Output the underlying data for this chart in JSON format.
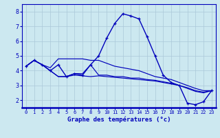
{
  "xlabel": "Graphe des températures (°c)",
  "xlim": [
    -0.5,
    23.5
  ],
  "ylim": [
    1.5,
    8.5
  ],
  "yticks": [
    2,
    3,
    4,
    5,
    6,
    7,
    8
  ],
  "xticks": [
    0,
    1,
    2,
    3,
    4,
    5,
    6,
    7,
    8,
    9,
    10,
    11,
    12,
    13,
    14,
    15,
    16,
    17,
    18,
    19,
    20,
    21,
    22,
    23
  ],
  "background_color": "#cce8f0",
  "grid_color": "#aac8d8",
  "line_color": "#0000bb",
  "curves": [
    {
      "x": [
        0,
        1,
        2,
        3,
        4,
        5,
        6,
        7,
        8,
        9,
        10,
        11,
        12,
        13,
        14,
        15,
        16,
        17,
        18,
        19,
        20,
        21,
        22,
        23
      ],
      "y": [
        4.3,
        4.7,
        4.4,
        4.0,
        4.4,
        3.6,
        3.8,
        3.7,
        4.4,
        5.0,
        6.2,
        7.2,
        7.85,
        7.7,
        7.5,
        6.3,
        5.0,
        3.7,
        3.2,
        3.0,
        1.8,
        1.7,
        1.9,
        2.65
      ],
      "marker": true
    },
    {
      "x": [
        0,
        1,
        2,
        3,
        4,
        5,
        6,
        7,
        8,
        9,
        10,
        11,
        12,
        13,
        14,
        15,
        16,
        17,
        18,
        19,
        20,
        21,
        22,
        23
      ],
      "y": [
        4.3,
        4.7,
        4.4,
        4.2,
        4.8,
        4.8,
        4.8,
        4.8,
        4.7,
        4.7,
        4.5,
        4.3,
        4.2,
        4.1,
        4.0,
        3.8,
        3.6,
        3.5,
        3.4,
        3.2,
        3.0,
        2.8,
        2.65,
        2.65
      ],
      "marker": false
    },
    {
      "x": [
        0,
        1,
        2,
        3,
        4,
        5,
        6,
        7,
        8,
        9,
        10,
        11,
        12,
        13,
        14,
        15,
        16,
        17,
        18,
        19,
        20,
        21,
        22,
        23
      ],
      "y": [
        4.3,
        4.7,
        4.4,
        4.0,
        3.6,
        3.6,
        3.7,
        3.65,
        3.6,
        3.65,
        3.6,
        3.55,
        3.5,
        3.45,
        3.4,
        3.35,
        3.3,
        3.2,
        3.1,
        3.0,
        2.8,
        2.6,
        2.5,
        2.65
      ],
      "marker": false
    },
    {
      "x": [
        0,
        1,
        2,
        3,
        4,
        5,
        6,
        7,
        8,
        9,
        10,
        11,
        12,
        13,
        14,
        15,
        16,
        17,
        18,
        19,
        20,
        21,
        22,
        23
      ],
      "y": [
        4.3,
        4.7,
        4.4,
        4.0,
        3.6,
        3.6,
        3.8,
        3.8,
        4.4,
        3.7,
        3.7,
        3.6,
        3.6,
        3.5,
        3.5,
        3.4,
        3.35,
        3.25,
        3.15,
        3.0,
        2.85,
        2.65,
        2.55,
        2.65
      ],
      "marker": false
    }
  ]
}
